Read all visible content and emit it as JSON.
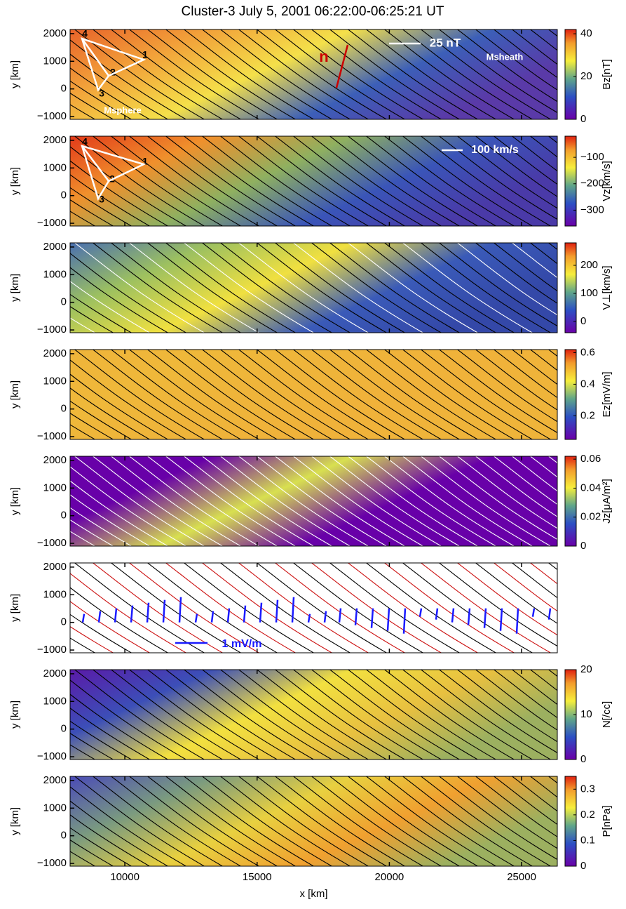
{
  "title": "Cluster-3 July 5, 2001  06:22:00-06:25:21 UT",
  "chart_data": [
    {
      "type": "heatmap",
      "ylabel": "y [km]",
      "xlim": [
        7930,
        26350
      ],
      "xticks": [
        10000,
        15000,
        20000,
        25000
      ],
      "ylim": [
        -1100,
        2150
      ],
      "yticks": [
        {
          "value": -1000,
          "label": "−1000"
        },
        0,
        1000,
        2000
      ],
      "colorbar": {
        "label": "Bz[nT]",
        "lim": [
          0,
          42
        ],
        "ticks": [
          0,
          20,
          40
        ]
      },
      "annotations": [
        {
          "text": "n",
          "color": "#cc0000"
        },
        {
          "text": "25 nT",
          "color": "#ffffff"
        },
        {
          "text": "Msheath",
          "color": "#ffffff"
        },
        {
          "text": "Msphere",
          "color": "#ffffff"
        },
        {
          "text": "1",
          "color": "#000000"
        },
        {
          "text": "2",
          "color": "#000000"
        },
        {
          "text": "3",
          "color": "#000000"
        },
        {
          "text": "4",
          "color": "#000000"
        }
      ]
    },
    {
      "type": "heatmap",
      "ylabel": "y [km]",
      "xlim": [
        7930,
        26350
      ],
      "xticks": [
        10000,
        15000,
        20000,
        25000
      ],
      "ylim": [
        -1100,
        2150
      ],
      "yticks": [
        {
          "value": -1000,
          "label": "−1000"
        },
        0,
        1000,
        2000
      ],
      "colorbar": {
        "label": "Vz[km/s]",
        "lim": [
          -360,
          -20
        ],
        "ticks": [
          {
            "value": -300,
            "label": "−300"
          },
          {
            "value": -200,
            "label": "−200"
          },
          {
            "value": -100,
            "label": "−100"
          }
        ]
      },
      "annotations": [
        {
          "text": "100 km/s",
          "color": "#ffffff"
        },
        {
          "text": "1",
          "color": "#000000"
        },
        {
          "text": "2",
          "color": "#000000"
        },
        {
          "text": "3",
          "color": "#000000"
        },
        {
          "text": "4",
          "color": "#000000"
        }
      ]
    },
    {
      "type": "heatmap",
      "ylabel": "y [km]",
      "xlim": [
        7930,
        26350
      ],
      "xticks": [
        10000,
        15000,
        20000,
        25000
      ],
      "ylim": [
        -1100,
        2150
      ],
      "yticks": [
        {
          "value": -1000,
          "label": "−1000"
        },
        0,
        1000,
        2000
      ],
      "colorbar": {
        "label": "V⊥[km/s]",
        "lim": [
          -40,
          280
        ],
        "ticks": [
          0,
          100,
          200
        ]
      },
      "annotations": []
    },
    {
      "type": "heatmap",
      "ylabel": "y [km]",
      "xlim": [
        7930,
        26350
      ],
      "xticks": [
        10000,
        15000,
        20000,
        25000
      ],
      "ylim": [
        -1100,
        2150
      ],
      "yticks": [
        {
          "value": -1000,
          "label": "−1000"
        },
        0,
        1000,
        2000
      ],
      "colorbar": {
        "label": "Ez[mV/m]",
        "lim": [
          0.05,
          0.62
        ],
        "ticks": [
          0.2,
          0.4,
          0.6
        ]
      },
      "annotations": []
    },
    {
      "type": "heatmap",
      "ylabel": "y [km]",
      "xlim": [
        7930,
        26350
      ],
      "xticks": [
        10000,
        15000,
        20000,
        25000
      ],
      "ylim": [
        -1100,
        2150
      ],
      "yticks": [
        {
          "value": -1000,
          "label": "−1000"
        },
        0,
        1000,
        2000
      ],
      "colorbar": {
        "label": "Jz[μA/m²]",
        "lim": [
          0,
          0.062
        ],
        "ticks": [
          0,
          0.02,
          0.04,
          0.06
        ]
      },
      "annotations": []
    },
    {
      "type": "contour",
      "ylabel": "y [km]",
      "xlim": [
        7930,
        26350
      ],
      "xticks": [
        10000,
        15000,
        20000,
        25000
      ],
      "ylim": [
        -1100,
        2150
      ],
      "yticks": [
        {
          "value": -1000,
          "label": "−1000"
        },
        0,
        1000,
        2000
      ],
      "annotations": [
        {
          "text": "1 mV/m",
          "color": "#1a1aff"
        }
      ]
    },
    {
      "type": "heatmap",
      "ylabel": "y [km]",
      "xlim": [
        7930,
        26350
      ],
      "xticks": [
        10000,
        15000,
        20000,
        25000
      ],
      "ylim": [
        -1100,
        2150
      ],
      "yticks": [
        {
          "value": -1000,
          "label": "−1000"
        },
        0,
        1000,
        2000
      ],
      "colorbar": {
        "label": "N[/cc]",
        "lim": [
          0,
          20
        ],
        "ticks": [
          0,
          10,
          20
        ]
      },
      "annotations": []
    },
    {
      "type": "heatmap",
      "ylabel": "y [km]",
      "xlabel": "x [km]",
      "xlim": [
        7930,
        26350
      ],
      "xticks": [
        10000,
        15000,
        20000,
        25000
      ],
      "ylim": [
        -1100,
        2150
      ],
      "yticks": [
        {
          "value": -1000,
          "label": "−1000"
        },
        0,
        1000,
        2000
      ],
      "colorbar": {
        "label": "P[nPa]",
        "lim": [
          0,
          0.35
        ],
        "ticks": [
          0,
          0.1,
          0.2,
          0.3
        ]
      },
      "annotations": []
    }
  ]
}
